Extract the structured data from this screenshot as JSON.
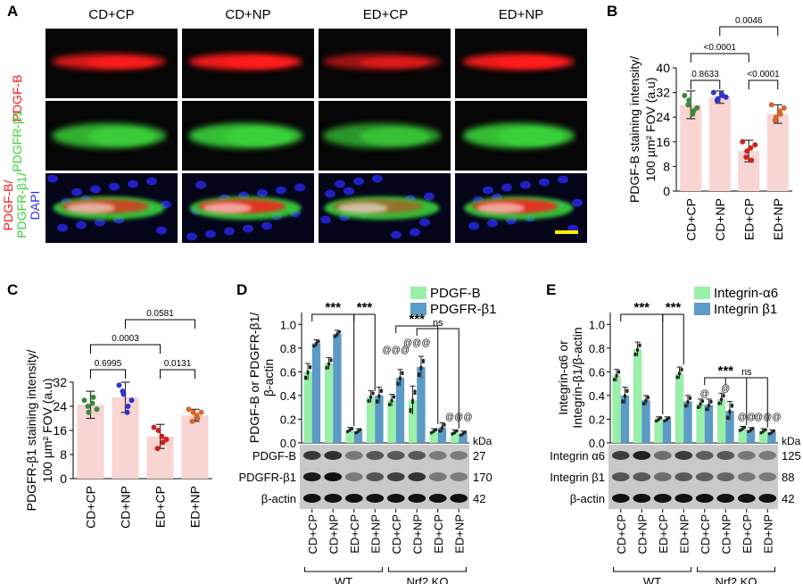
{
  "panel_letters": [
    "A",
    "B",
    "C",
    "D",
    "E"
  ],
  "colors": {
    "red": "#ff1a1a",
    "green": "#3ad33a",
    "blue": "#2a2aff",
    "pink_bar": "#f8d4d2",
    "light_green_bar": "#98f0a8",
    "blue_bar": "#5b9bc6",
    "dot_green": "#3a8a3a",
    "dot_blue": "#3333cc",
    "dot_red": "#cc2222",
    "dot_orange": "#d9662a",
    "scale_bar": "#ffee00"
  },
  "panel_a": {
    "columns": [
      "CD+CP",
      "CD+NP",
      "ED+CP",
      "ED+NP"
    ],
    "row_labels": {
      "r1": "PDGF-B",
      "r2": "PDGFR-β1",
      "r3a": "PDGF-B/",
      "r3b": "PDGFR-β1/",
      "r3c": "DAPI"
    }
  },
  "chart_data": [
    {
      "panel": "B",
      "type": "bar",
      "categories": [
        "CD+CP",
        "CD+NP",
        "ED+CP",
        "ED+NP"
      ],
      "values": [
        28,
        30.5,
        13,
        25
      ],
      "errors": [
        4.5,
        2,
        3.5,
        3
      ],
      "points": [
        [
          31,
          29.5,
          26,
          28,
          25,
          27
        ],
        [
          32,
          30,
          31,
          29.5,
          31.5,
          30.5
        ],
        [
          16,
          13,
          10,
          11,
          14,
          15
        ],
        [
          28,
          24,
          25,
          23,
          26,
          27
        ]
      ],
      "dot_colors": [
        "#3a8a3a",
        "#3333cc",
        "#cc2222",
        "#d9662a"
      ],
      "ylabel_line1": "PDGF-B staining intensity/",
      "ylabel_line2": "100 µm² FOV (a.u)",
      "ylim": [
        0,
        40
      ],
      "yticks": [
        "0",
        "8",
        "16",
        "24",
        "32",
        "40"
      ],
      "brackets": [
        "0.8633",
        "<0.0001",
        "0.0046",
        "<0.0001"
      ]
    },
    {
      "panel": "C",
      "type": "bar",
      "categories": [
        "CD+CP",
        "CD+NP",
        "ED+CP",
        "ED+NP"
      ],
      "values": [
        24.5,
        27,
        14,
        21
      ],
      "errors": [
        4.5,
        5,
        4,
        2
      ],
      "points": [
        [
          26,
          22,
          27,
          24,
          25,
          23
        ],
        [
          31,
          28,
          24,
          29,
          22,
          26
        ],
        [
          17,
          16,
          12,
          10,
          14,
          13
        ],
        [
          23,
          22,
          20,
          19,
          21,
          22
        ]
      ],
      "dot_colors": [
        "#3a8a3a",
        "#3333cc",
        "#cc2222",
        "#d9662a"
      ],
      "ylabel_line1": "PDGFR-β1 staining intensity/",
      "ylabel_line2": "100 µm² FOV (a.u)",
      "ylim": [
        0,
        32
      ],
      "yticks": [
        "0",
        "8",
        "16",
        "24",
        "32"
      ],
      "brackets": [
        "0.6995",
        "0.0003",
        "0.0581",
        "0.0131"
      ]
    },
    {
      "panel": "D",
      "type": "bar",
      "categories": [
        "CD+CP",
        "CD+NP",
        "ED+CP",
        "ED+NP",
        "CD+CP",
        "CD+NP",
        "ED+CP",
        "ED+NP"
      ],
      "groups": [
        "WT",
        "Nrf2 KO"
      ],
      "series": [
        {
          "name": "PDGF-B",
          "values": [
            0.6,
            0.67,
            0.11,
            0.39,
            0.36,
            0.36,
            0.1,
            0.09
          ],
          "errors": [
            0.07,
            0.05,
            0.02,
            0.05,
            0.05,
            0.12,
            0.02,
            0.02
          ]
        },
        {
          "name": "PDGFR-β1",
          "values": [
            0.84,
            0.92,
            0.1,
            0.4,
            0.55,
            0.64,
            0.13,
            0.08
          ],
          "errors": [
            0.03,
            0.03,
            0.02,
            0.07,
            0.07,
            0.09,
            0.04,
            0.02
          ]
        }
      ],
      "ylabel_line1": "PDGF-B or PDGFR-β1/",
      "ylabel_line2": "β-actin",
      "ylim": [
        0,
        1.1
      ],
      "yticks": [
        "0.0",
        "0.2",
        "0.4",
        "0.6",
        "0.8",
        "1.0"
      ],
      "significance": [
        "***",
        "***",
        "***",
        "ns"
      ],
      "at_marks": [
        "@@@",
        "@@@",
        "@@@"
      ],
      "kda_label": "kDa",
      "blots": [
        {
          "label": "PDGF-B",
          "kda": "27"
        },
        {
          "label": "PDGFR-β1",
          "kda": "170"
        },
        {
          "label": "β-actin",
          "kda": "42"
        }
      ]
    },
    {
      "panel": "E",
      "type": "bar",
      "categories": [
        "CD+CP",
        "CD+NP",
        "ED+CP",
        "ED+NP",
        "CD+CP",
        "CD+NP",
        "ED+CP",
        "ED+NP"
      ],
      "groups": [
        "WT",
        "Nrf2 KO"
      ],
      "series": [
        {
          "name": "Integrin-α6",
          "values": [
            0.57,
            0.79,
            0.2,
            0.59,
            0.33,
            0.37,
            0.12,
            0.1
          ],
          "errors": [
            0.05,
            0.06,
            0.02,
            0.05,
            0.04,
            0.05,
            0.02,
            0.02
          ]
        },
        {
          "name": "Integrin β1",
          "values": [
            0.4,
            0.36,
            0.2,
            0.35,
            0.32,
            0.27,
            0.11,
            0.09
          ],
          "errors": [
            0.07,
            0.04,
            0.02,
            0.05,
            0.05,
            0.08,
            0.02,
            0.02
          ]
        }
      ],
      "ylabel_line1": "Integrin-α6 or",
      "ylabel_line2": "Integrin-β1/β-actin",
      "ylim": [
        0,
        1.1
      ],
      "yticks": [
        "0.0",
        "0.2",
        "0.4",
        "0.6",
        "0.8",
        "1.0"
      ],
      "significance": [
        "***",
        "***",
        "***",
        "ns"
      ],
      "at_marks": [
        "@",
        "@",
        "@@",
        "@@@"
      ],
      "kda_label": "kDa",
      "blots": [
        {
          "label": "Integrin α6",
          "kda": "125"
        },
        {
          "label": "Integrin β1",
          "kda": "88"
        },
        {
          "label": "β-actin",
          "kda": "42"
        }
      ]
    }
  ]
}
